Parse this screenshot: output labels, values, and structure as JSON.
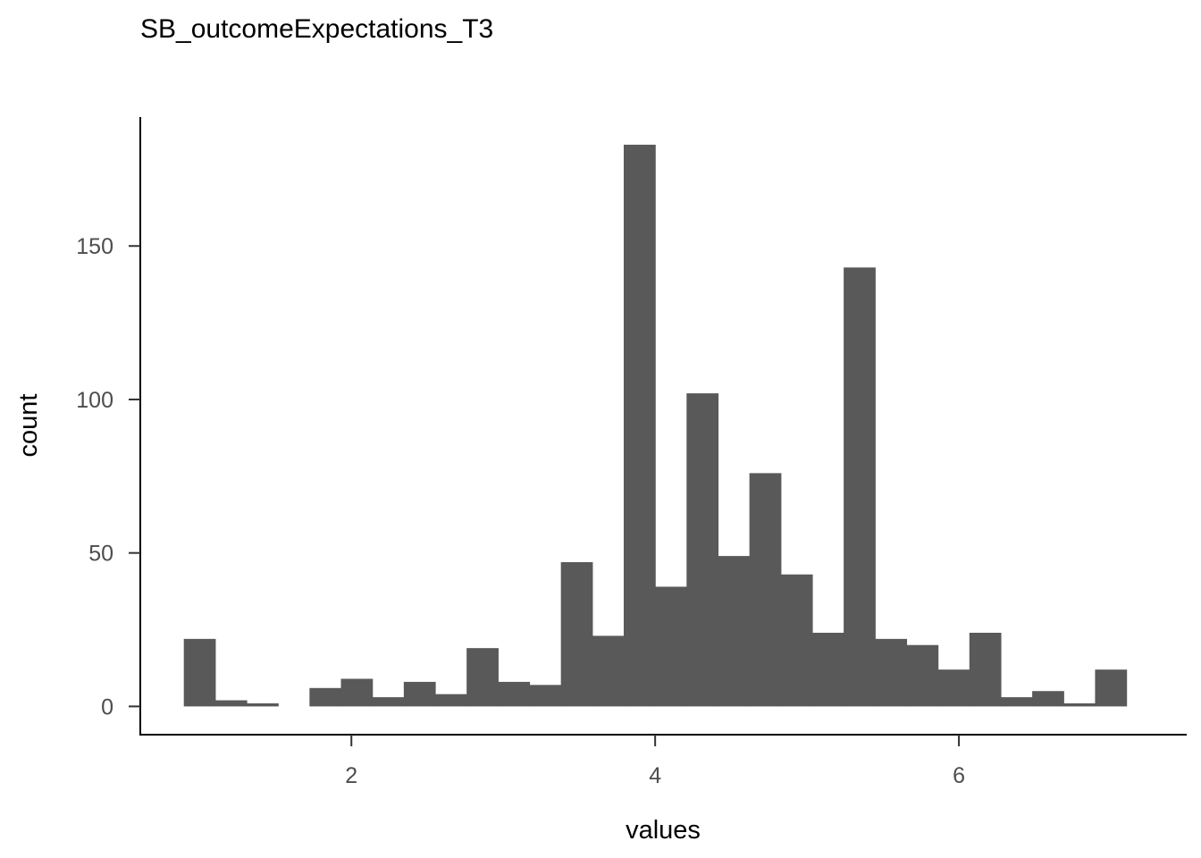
{
  "chart_data": {
    "type": "bar",
    "title": "SB_outcomeExpectations_T3",
    "xlabel": "values",
    "ylabel": "count",
    "bin_width": 0.2069,
    "bins": [
      {
        "x": 1.0,
        "count": 22
      },
      {
        "x": 1.2069,
        "count": 2
      },
      {
        "x": 1.4138,
        "count": 1
      },
      {
        "x": 1.6207,
        "count": 0
      },
      {
        "x": 1.8276,
        "count": 6
      },
      {
        "x": 2.0345,
        "count": 9
      },
      {
        "x": 2.2414,
        "count": 3
      },
      {
        "x": 2.4483,
        "count": 8
      },
      {
        "x": 2.6552,
        "count": 4
      },
      {
        "x": 2.8621,
        "count": 19
      },
      {
        "x": 3.069,
        "count": 8
      },
      {
        "x": 3.2759,
        "count": 7
      },
      {
        "x": 3.4828,
        "count": 47
      },
      {
        "x": 3.6897,
        "count": 23
      },
      {
        "x": 3.8966,
        "count": 183
      },
      {
        "x": 4.1034,
        "count": 39
      },
      {
        "x": 4.3103,
        "count": 102
      },
      {
        "x": 4.5172,
        "count": 49
      },
      {
        "x": 4.7241,
        "count": 76
      },
      {
        "x": 4.931,
        "count": 43
      },
      {
        "x": 5.1379,
        "count": 24
      },
      {
        "x": 5.3448,
        "count": 143
      },
      {
        "x": 5.5517,
        "count": 22
      },
      {
        "x": 5.7586,
        "count": 20
      },
      {
        "x": 5.9655,
        "count": 12
      },
      {
        "x": 6.1724,
        "count": 24
      },
      {
        "x": 6.3793,
        "count": 3
      },
      {
        "x": 6.5862,
        "count": 5
      },
      {
        "x": 6.7931,
        "count": 1
      },
      {
        "x": 7.0,
        "count": 12
      }
    ],
    "xlim": [
      0.61,
      7.5
    ],
    "ylim": [
      -9.2,
      192
    ],
    "x_ticks": [
      2,
      4,
      6
    ],
    "x_tick_labels": [
      "2",
      "4",
      "6"
    ],
    "y_ticks": [
      0,
      50,
      100,
      150
    ],
    "y_tick_labels": [
      "0",
      "50",
      "100",
      "150"
    ],
    "bar_color": "#595959",
    "grid": false,
    "legend": "none"
  }
}
